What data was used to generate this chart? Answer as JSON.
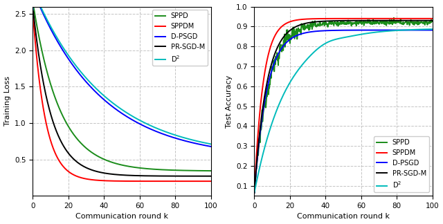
{
  "xlabel": "Communication round k",
  "ylabel_left": "Training Loss",
  "ylabel_right": "Test Accuracy",
  "xlim": [
    0,
    100
  ],
  "ylim_left": [
    0.0,
    2.6
  ],
  "ylim_right": [
    0.05,
    1.0
  ],
  "yticks_left": [
    0.5,
    1.0,
    1.5,
    2.0,
    2.5
  ],
  "yticks_right": [
    0.1,
    0.2,
    0.3,
    0.4,
    0.5,
    0.6,
    0.7,
    0.8,
    0.9,
    1.0
  ],
  "xticks": [
    0,
    20,
    40,
    60,
    80,
    100
  ],
  "colors": {
    "SPPD": "#1a8c1a",
    "SPPDM": "#ff0000",
    "D-PSGD": "#0000ff",
    "PR-SGD-M": "#000000",
    "D2": "#00bbbb"
  },
  "figsize": [
    6.4,
    3.24
  ],
  "dpi": 100
}
